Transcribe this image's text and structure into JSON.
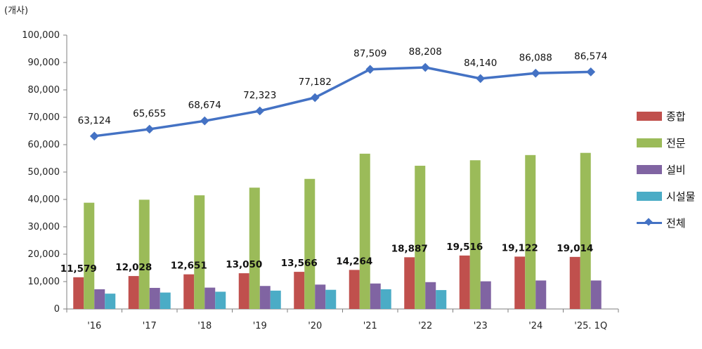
{
  "chart_data": {
    "type": "bar",
    "unit_label": "(개사)",
    "categories": [
      "'16",
      "'17",
      "'18",
      "'19",
      "'20",
      "'21",
      "'22",
      "'23",
      "'24",
      "'25. 1Q"
    ],
    "ylim": [
      0,
      100000
    ],
    "yticks": [
      "0",
      "10,000",
      "20,000",
      "30,000",
      "40,000",
      "50,000",
      "60,000",
      "70,000",
      "80,000",
      "90,000",
      "100,000"
    ],
    "series": [
      {
        "name": "종합",
        "type": "bar",
        "color": "#C0504D",
        "values": [
          11579,
          12028,
          12651,
          13050,
          13566,
          14264,
          18887,
          19516,
          19122,
          19014
        ],
        "labels": [
          "11,579",
          "12,028",
          "12,651",
          "13,050",
          "13,566",
          "14,264",
          "18,887",
          "19,516",
          "19,122",
          "19,014"
        ]
      },
      {
        "name": "전문",
        "type": "bar",
        "color": "#9BBB59",
        "values": [
          38800,
          39900,
          41500,
          44300,
          47500,
          56700,
          52300,
          54300,
          56200,
          57000
        ]
      },
      {
        "name": "설비",
        "type": "bar",
        "color": "#8064A2",
        "values": [
          7200,
          7700,
          7800,
          8400,
          8900,
          9300,
          9800,
          10100,
          10400,
          10400
        ]
      },
      {
        "name": "시설물",
        "type": "bar",
        "color": "#4BACC6",
        "values": [
          5600,
          6000,
          6300,
          6700,
          7000,
          7200,
          6900,
          null,
          null,
          null
        ]
      },
      {
        "name": "전체",
        "type": "line",
        "color": "#4472C4",
        "values": [
          63124,
          65655,
          68674,
          72323,
          77182,
          87509,
          88208,
          84140,
          86088,
          86574
        ],
        "labels": [
          "63,124",
          "65,655",
          "68,674",
          "72,323",
          "77,182",
          "87,509",
          "88,208",
          "84,140",
          "86,088",
          "86,574"
        ]
      }
    ]
  }
}
